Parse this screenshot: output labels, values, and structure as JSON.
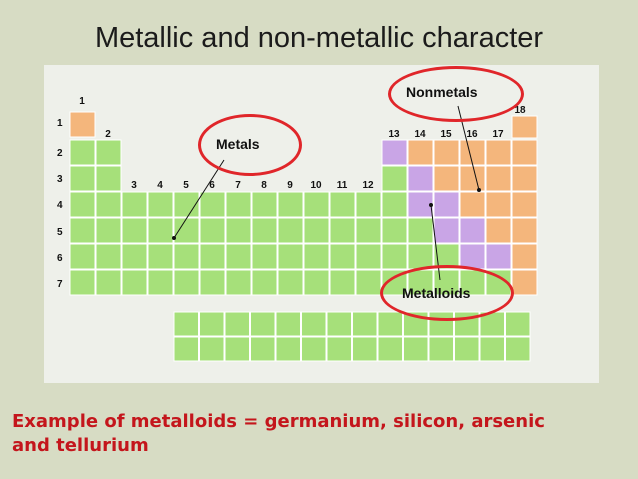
{
  "title": "Metallic and non-metallic character",
  "periods": [
    "1",
    "2",
    "3",
    "4",
    "5",
    "6",
    "7"
  ],
  "groups": [
    "1",
    "2",
    "3",
    "4",
    "5",
    "6",
    "7",
    "8",
    "9",
    "10",
    "11",
    "12",
    "13",
    "14",
    "15",
    "16",
    "17",
    "18"
  ],
  "callouts": {
    "metals": "Metals",
    "nonmetals": "Nonmetals",
    "metalloids": "Metalloids"
  },
  "colors": {
    "metal": "#a6e07a",
    "nonmetal": "#f4b67c",
    "metalloid": "#c9a5e6",
    "ring": "#e0262a"
  },
  "caption": "Example of metalloids = germanium, silicon, arsenic and tellurium"
}
